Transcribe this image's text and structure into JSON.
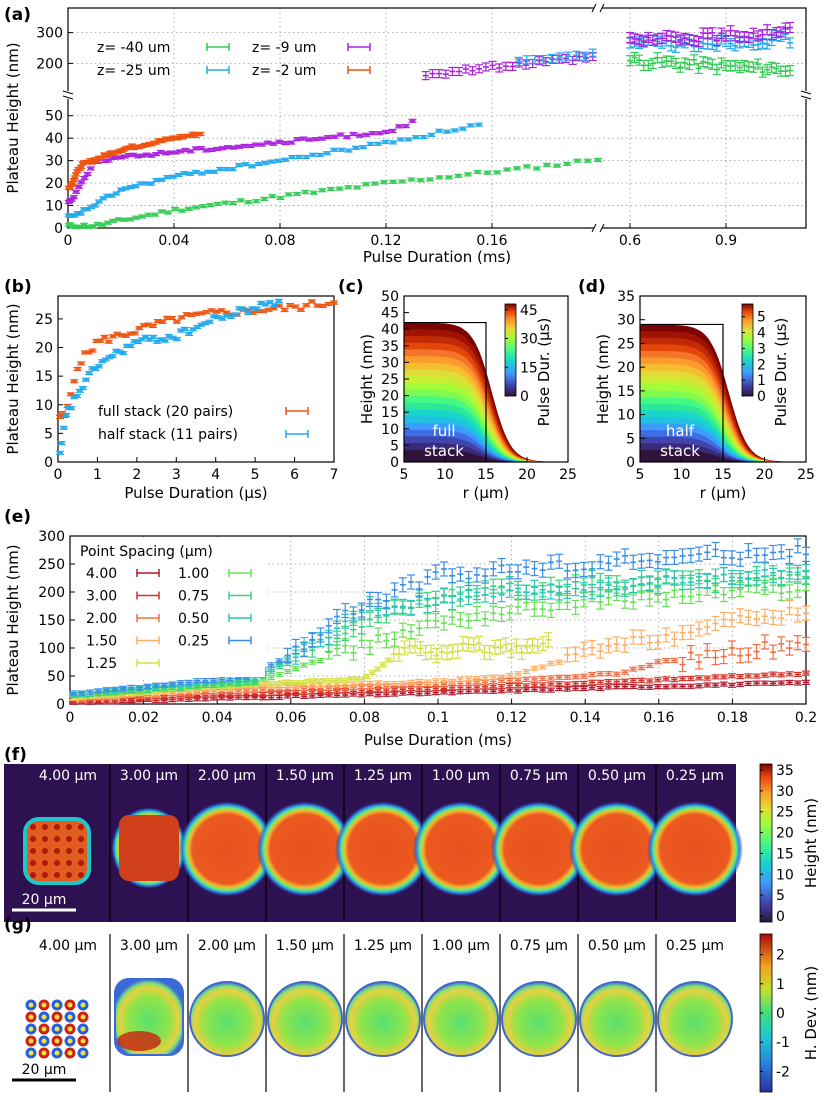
{
  "chart_data": [
    {
      "id": "a",
      "panel_label": "(a)",
      "type": "scatter",
      "xlabel": "Pulse Duration (ms)",
      "ylabel": "Plateau Height (nm)",
      "x_ticks": [
        "0",
        "0.04",
        "0.08",
        "0.12",
        "0.16",
        "0.6",
        "0.9"
      ],
      "y_ticks_lower": [
        "0",
        "10",
        "20",
        "30",
        "40",
        "50"
      ],
      "y_ticks_upper": [
        "200",
        "300"
      ],
      "legend": [
        "z= -40 um",
        "z= -25 um",
        "z= -9 um",
        "z= -2 um"
      ],
      "series": [
        {
          "name": "z= -40 um",
          "color": "#33cc55",
          "x": [
            0.01,
            0.04,
            0.08,
            0.12,
            0.16,
            0.19,
            0.2,
            0.6,
            0.9,
            1.1
          ],
          "y": [
            1,
            8,
            14,
            20,
            25,
            29,
            31,
            210,
            190,
            180
          ]
        },
        {
          "name": "z= -25 um",
          "color": "#22aaee",
          "x": [
            0.002,
            0.02,
            0.04,
            0.08,
            0.12,
            0.155,
            0.6,
            0.9,
            1.1
          ],
          "y": [
            5,
            17,
            23,
            30,
            38,
            46,
            260,
            270,
            280
          ]
        },
        {
          "name": "z= -9 um",
          "color": "#aa22dd",
          "x": [
            0.001,
            0.01,
            0.04,
            0.08,
            0.12,
            0.13,
            0.6,
            0.9,
            1.1
          ],
          "y": [
            12,
            30,
            34,
            38,
            43,
            47,
            270,
            290,
            310
          ]
        },
        {
          "name": "z= -2 um",
          "color": "#ee5511",
          "x": [
            0.0005,
            0.005,
            0.02,
            0.04,
            0.05
          ],
          "y": [
            18,
            28,
            35,
            40,
            42
          ]
        }
      ]
    },
    {
      "id": "b",
      "panel_label": "(b)",
      "type": "scatter",
      "xlabel": "Pulse Duration (µs)",
      "ylabel": "Plateau Height (nm)",
      "xlim": [
        0,
        7
      ],
      "ylim": [
        0,
        29
      ],
      "x_ticks": [
        "0",
        "1",
        "2",
        "3",
        "4",
        "5",
        "6",
        "7"
      ],
      "y_ticks": [
        "0",
        "5",
        "10",
        "15",
        "20",
        "25"
      ],
      "legend": [
        "full stack (20 pairs)",
        "half stack (11 pairs)"
      ],
      "series": [
        {
          "name": "full stack (20 pairs)",
          "color": "#ee5511",
          "x": [
            0.2,
            0.5,
            1,
            2,
            3,
            4,
            5,
            6,
            7
          ],
          "y": [
            8,
            17,
            21,
            23,
            25,
            26,
            26.5,
            27,
            28
          ]
        },
        {
          "name": "half stack (11 pairs)",
          "color": "#22aaee",
          "x": [
            0.05,
            0.2,
            0.5,
            1,
            2,
            3,
            4,
            5,
            5.6
          ],
          "y": [
            1,
            8,
            12,
            17,
            21,
            22,
            25,
            27,
            28
          ]
        }
      ]
    },
    {
      "id": "c",
      "panel_label": "(c)",
      "type": "area",
      "xlabel": "r (µm)",
      "ylabel": "Height (nm)",
      "xlim": [
        5,
        25
      ],
      "ylim": [
        0,
        50
      ],
      "stack_height": 42,
      "x_ticks": [
        "5",
        "10",
        "15",
        "20",
        "25"
      ],
      "y_ticks": [
        "0",
        "5",
        "10",
        "15",
        "20",
        "25",
        "30",
        "35",
        "40",
        "45",
        "50"
      ],
      "annotation": [
        "full",
        "stack"
      ],
      "colorbar_label": "Pulse Dur. (µs)",
      "colorbar_ticks": [
        "0",
        "15",
        "30",
        "45"
      ],
      "colorbar_max": 48
    },
    {
      "id": "d",
      "panel_label": "(d)",
      "type": "area",
      "xlabel": "r (µm)",
      "ylabel": "Height (nm)",
      "xlim": [
        5,
        25
      ],
      "ylim": [
        0,
        35
      ],
      "stack_height": 29,
      "x_ticks": [
        "5",
        "10",
        "15",
        "20",
        "25"
      ],
      "y_ticks": [
        "0",
        "5",
        "10",
        "15",
        "20",
        "25",
        "30",
        "35"
      ],
      "annotation": [
        "half",
        "stack"
      ],
      "colorbar_label": "Pulse Dur. (µs)",
      "colorbar_ticks": [
        "0",
        "1",
        "2",
        "3",
        "4",
        "5"
      ],
      "colorbar_max": 5.8
    },
    {
      "id": "e",
      "panel_label": "(e)",
      "type": "scatter",
      "xlabel": "Pulse Duration (ms)",
      "ylabel": "Plateau Height (nm)",
      "xlim": [
        0,
        0.2
      ],
      "ylim": [
        0,
        300
      ],
      "x_ticks": [
        "0",
        "0.02",
        "0.04",
        "0.06",
        "0.08",
        "0.1",
        "0.12",
        "0.14",
        "0.16",
        "0.18",
        "0.2"
      ],
      "y_ticks": [
        "0",
        "50",
        "100",
        "150",
        "200",
        "250",
        "300"
      ],
      "legend_title": "Point Spacing (µm)",
      "series": [
        {
          "name": "4.00",
          "color": "#b2182b",
          "x": [
            0,
            0.05,
            0.1,
            0.15,
            0.2
          ],
          "y": [
            3,
            12,
            20,
            30,
            38
          ]
        },
        {
          "name": "3.00",
          "color": "#d73027",
          "x": [
            0,
            0.05,
            0.1,
            0.15,
            0.2
          ],
          "y": [
            5,
            18,
            28,
            40,
            55
          ]
        },
        {
          "name": "2.00",
          "color": "#f46d43",
          "x": [
            0,
            0.05,
            0.1,
            0.15,
            0.16,
            0.2
          ],
          "y": [
            8,
            25,
            35,
            55,
            75,
            110
          ]
        },
        {
          "name": "1.50",
          "color": "#fdae61",
          "x": [
            0,
            0.05,
            0.1,
            0.12,
            0.14,
            0.16,
            0.2
          ],
          "y": [
            10,
            30,
            40,
            50,
            90,
            120,
            170
          ]
        },
        {
          "name": "1.25",
          "color": "#d4e04a",
          "x": [
            0,
            0.05,
            0.08,
            0.09,
            0.12,
            0.13
          ],
          "y": [
            12,
            35,
            45,
            95,
            100,
            105
          ]
        },
        {
          "name": "1.00",
          "color": "#66e055",
          "x": [
            0,
            0.05,
            0.1,
            0.14,
            0.2
          ],
          "y": [
            14,
            38,
            150,
            185,
            210
          ]
        },
        {
          "name": "0.75",
          "color": "#33d67a",
          "x": [
            0,
            0.05,
            0.08,
            0.1,
            0.14,
            0.2
          ],
          "y": [
            15,
            40,
            150,
            195,
            215,
            225
          ]
        },
        {
          "name": "0.50",
          "color": "#2ec4b6",
          "x": [
            0,
            0.05,
            0.07,
            0.08,
            0.12,
            0.2
          ],
          "y": [
            17,
            45,
            120,
            175,
            200,
            240
          ]
        },
        {
          "name": "0.25",
          "color": "#3a8ee6",
          "x": [
            0,
            0.05,
            0.06,
            0.075,
            0.1,
            0.15,
            0.2
          ],
          "y": [
            18,
            50,
            90,
            160,
            230,
            255,
            275
          ]
        }
      ]
    },
    {
      "id": "f",
      "panel_label": "(f)",
      "type": "heatmap",
      "tiles": [
        "4.00 µm",
        "3.00 µm",
        "2.00 µm",
        "1.50 µm",
        "1.25 µm",
        "1.00 µm",
        "0.75 µm",
        "0.50 µm",
        "0.25 µm"
      ],
      "scale_bar": "20 µm",
      "colorbar_label": "Height (nm)",
      "colorbar_ticks": [
        "0",
        "5",
        "10",
        "15",
        "20",
        "25",
        "30",
        "35"
      ]
    },
    {
      "id": "g",
      "panel_label": "(g)",
      "type": "heatmap",
      "tiles": [
        "4.00 µm",
        "3.00 µm",
        "2.00 µm",
        "1.50 µm",
        "1.25 µm",
        "1.00 µm",
        "0.75 µm",
        "0.50 µm",
        "0.25 µm"
      ],
      "scale_bar": "20 µm",
      "colorbar_label": "H. Dev. (nm)",
      "colorbar_ticks": [
        "2",
        "1",
        "0",
        "-1",
        "-2"
      ]
    }
  ]
}
